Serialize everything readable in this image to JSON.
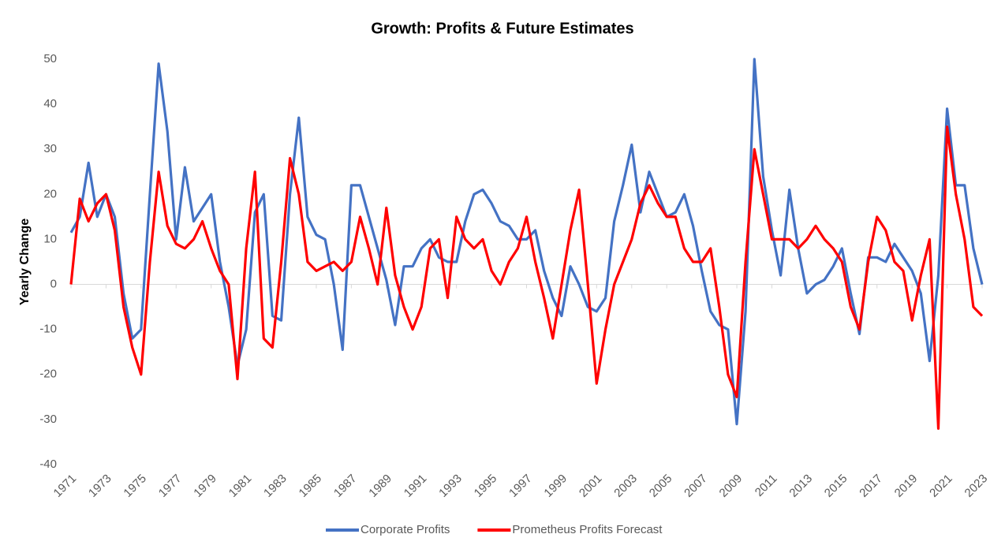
{
  "chart_data": {
    "type": "line",
    "title": "Growth: Profits & Future Estimates",
    "y_label": "Yearly Change",
    "x": [
      1971,
      1971.5,
      1972,
      1972.5,
      1973,
      1973.5,
      1974,
      1974.5,
      1975,
      1975.5,
      1976,
      1976.5,
      1977,
      1977.5,
      1978,
      1978.5,
      1979,
      1979.5,
      1980,
      1980.5,
      1981,
      1981.5,
      1982,
      1982.5,
      1983,
      1983.5,
      1984,
      1984.5,
      1985,
      1985.5,
      1986,
      1986.5,
      1987,
      1987.5,
      1988,
      1988.5,
      1989,
      1989.5,
      1990,
      1990.5,
      1991,
      1991.5,
      1992,
      1992.5,
      1993,
      1993.5,
      1994,
      1994.5,
      1995,
      1995.5,
      1996,
      1996.5,
      1997,
      1997.5,
      1998,
      1998.5,
      1999,
      1999.5,
      2000,
      2000.5,
      2001,
      2001.5,
      2002,
      2002.5,
      2003,
      2003.5,
      2004,
      2004.5,
      2005,
      2005.5,
      2006,
      2006.5,
      2007,
      2007.5,
      2008,
      2008.5,
      2009,
      2009.5,
      2010,
      2010.5,
      2011,
      2011.5,
      2012,
      2012.5,
      2013,
      2013.5,
      2014,
      2014.5,
      2015,
      2015.5,
      2016,
      2016.5,
      2017,
      2017.5,
      2018,
      2018.5,
      2019,
      2019.5,
      2020,
      2020.5,
      2021,
      2021.5,
      2022,
      2022.5,
      2023
    ],
    "series": [
      {
        "name": "Corporate Profits",
        "color": "#4472c4",
        "values": [
          11.5,
          15,
          27,
          15,
          20,
          15,
          -2,
          -12,
          -10,
          20,
          49,
          34,
          10,
          26,
          14,
          17,
          20,
          5,
          -5,
          -18,
          -10,
          16,
          20,
          -7,
          -8,
          20,
          37,
          15,
          11,
          10,
          0,
          -14.5,
          22,
          22,
          15,
          8,
          1,
          -9,
          4,
          4,
          8,
          10,
          6,
          5,
          5,
          14,
          20,
          21,
          18,
          14,
          13,
          10,
          10,
          12,
          3,
          -3,
          -7,
          4,
          0,
          -5,
          -6,
          -3,
          14,
          22,
          31,
          16,
          25,
          20,
          15,
          16,
          20,
          13,
          3,
          -6,
          -9,
          -10,
          -31,
          -6,
          50,
          24,
          12,
          2,
          21,
          8,
          -2,
          0,
          1,
          4,
          8,
          -2,
          -11,
          6,
          6,
          5,
          9,
          6,
          3,
          -2,
          -17,
          2,
          39,
          22,
          22,
          8,
          0
        ]
      },
      {
        "name": "Prometheus Profits Forecast",
        "color": "#ff0000",
        "values": [
          0,
          19,
          14,
          18,
          20,
          12,
          -5,
          -14,
          -20,
          5,
          25,
          13,
          9,
          8,
          10,
          14,
          8,
          3,
          0,
          -21,
          8,
          25,
          -12,
          -14,
          5,
          28,
          20,
          5,
          3,
          4,
          5,
          3,
          5,
          15,
          8,
          0,
          17,
          2,
          -5,
          -10,
          -5,
          8,
          10,
          -3,
          15,
          10,
          8,
          10,
          3,
          0,
          5,
          8,
          15,
          5,
          -3,
          -12,
          0,
          12,
          21,
          0,
          -22,
          -10,
          0,
          5,
          10,
          18,
          22,
          18,
          15,
          15,
          8,
          5,
          5,
          8,
          -5,
          -20,
          -25,
          5,
          30,
          20,
          10,
          10,
          10,
          8,
          10,
          13,
          10,
          8,
          5,
          -5,
          -10,
          5,
          15,
          12,
          5,
          3,
          -8,
          2,
          10,
          -32,
          35,
          20,
          10,
          -5,
          -7
        ]
      }
    ],
    "xlim": [
      1971,
      2023
    ],
    "xticks": [
      1971,
      1973,
      1975,
      1977,
      1979,
      1981,
      1983,
      1985,
      1987,
      1989,
      1991,
      1993,
      1995,
      1997,
      1999,
      2001,
      2003,
      2005,
      2007,
      2009,
      2011,
      2013,
      2015,
      2017,
      2019,
      2021,
      2023
    ],
    "ylim": [
      -40,
      50
    ],
    "yticks": [
      -40,
      -30,
      -20,
      -10,
      0,
      10,
      20,
      30,
      40,
      50
    ],
    "legend": "bottom"
  }
}
